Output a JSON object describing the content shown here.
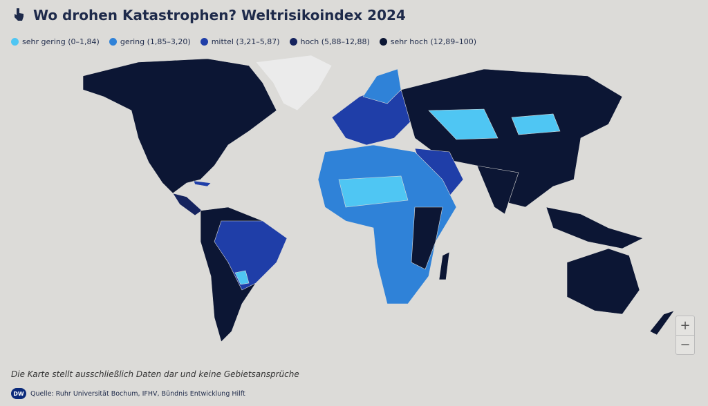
{
  "header": {
    "title": "Wo drohen Katastrophen? Weltrisikoindex 2024"
  },
  "legend": {
    "items": [
      {
        "label": "sehr gering (0–1,84)",
        "color": "#4fc6f3"
      },
      {
        "label": "gering (1,85–3,20)",
        "color": "#2f82d8"
      },
      {
        "label": "mittel (3,21–5,87)",
        "color": "#1f3ea8"
      },
      {
        "label": "hoch (5,88–12,88)",
        "color": "#15235e"
      },
      {
        "label": "sehr hoch (12,89–100)",
        "color": "#0c1634"
      }
    ]
  },
  "no_data_color": "#ebebeb",
  "note": "Die Karte stellt ausschließlich Daten dar und keine Gebietsansprüche",
  "source": {
    "logo": "DW",
    "text": "Quelle: Ruhr Universität Bochum, IFHV, Bündnis Entwicklung Hilft"
  },
  "zoom": {
    "in": "+",
    "out": "−"
  }
}
